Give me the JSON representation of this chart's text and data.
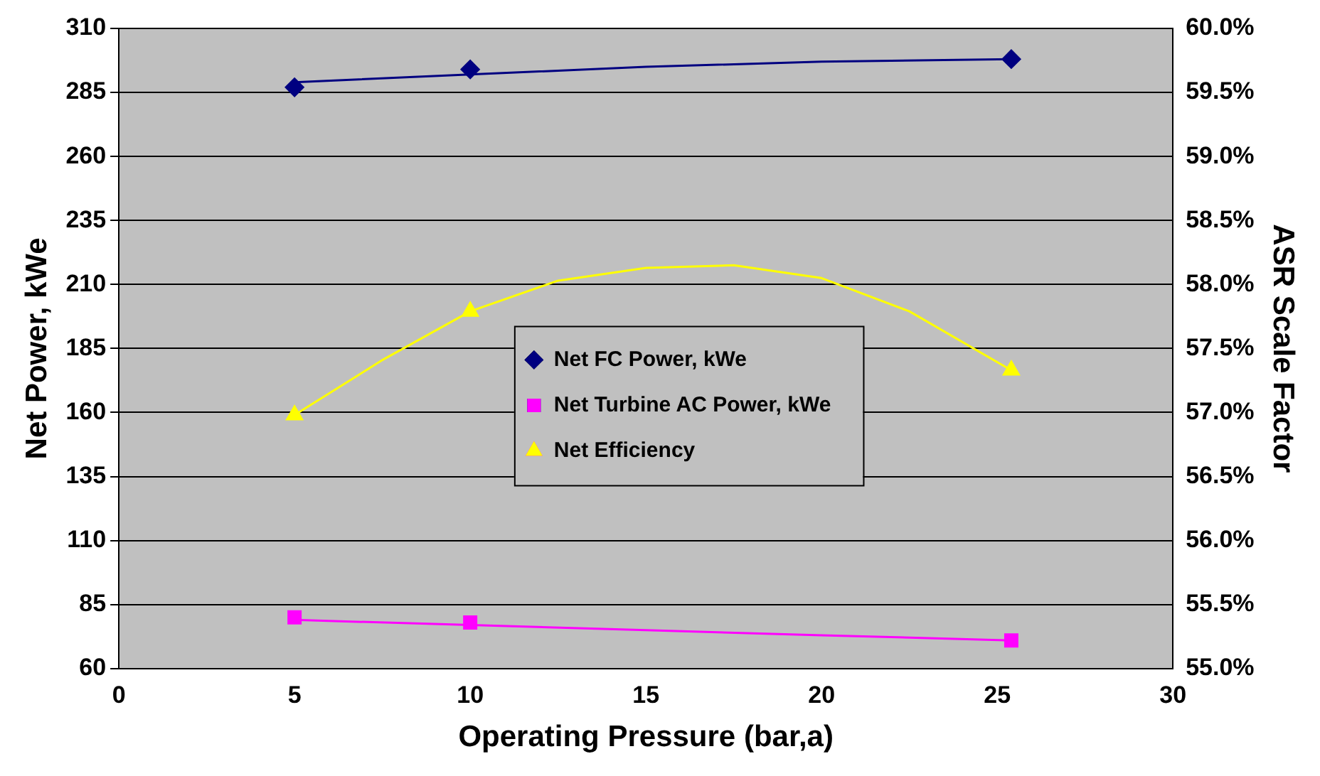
{
  "chart_data": {
    "type": "line",
    "xlabel": "Operating Pressure (bar,a)",
    "ylabel": "Net Power, kWe",
    "y2label": "ASR Scale Factor",
    "xlim": [
      0,
      30
    ],
    "xticks": [
      0,
      5,
      10,
      15,
      20,
      25,
      30
    ],
    "ylim": [
      60,
      310
    ],
    "yticks": [
      60,
      85,
      110,
      135,
      160,
      185,
      210,
      235,
      260,
      285,
      310
    ],
    "y2lim": [
      55,
      60
    ],
    "y2ticks": [
      {
        "value": 55,
        "label": "55.0%"
      },
      {
        "value": 55.5,
        "label": "55.5%"
      },
      {
        "value": 56,
        "label": "56.0%"
      },
      {
        "value": 56.5,
        "label": "56.5%"
      },
      {
        "value": 57,
        "label": "57.0%"
      },
      {
        "value": 57.5,
        "label": "57.5%"
      },
      {
        "value": 58,
        "label": "58.0%"
      },
      {
        "value": 58.5,
        "label": "58.5%"
      },
      {
        "value": 59,
        "label": "59.0%"
      },
      {
        "value": 59.5,
        "label": "59.5%"
      },
      {
        "value": 60,
        "label": "60.0%"
      }
    ],
    "grid": "y",
    "legend": "center",
    "series": [
      {
        "name": "Net FC Power, kWe",
        "type": "scatter",
        "marker": "diamond",
        "color": "#000080",
        "x": [
          5,
          10,
          25.4
        ],
        "values": [
          287,
          294,
          298
        ]
      },
      {
        "name": "Net Turbine AC Power, kWe",
        "type": "scatter",
        "marker": "square",
        "color": "#ff00ff",
        "x": [
          5,
          10,
          25.4
        ],
        "values": [
          80,
          78,
          71
        ]
      },
      {
        "name": "Net Efficiency",
        "type": "scatter",
        "marker": "triangle",
        "color": "#ffff00",
        "axis": "y2",
        "x": [
          5,
          10,
          25.4
        ],
        "values": [
          56.98,
          57.79,
          57.33
        ]
      },
      {
        "type": "line",
        "marker": "none",
        "color": "#000080",
        "x": [
          5,
          10,
          15,
          20,
          25.4
        ],
        "values": [
          289,
          292,
          295,
          297,
          298
        ]
      },
      {
        "type": "line",
        "marker": "none",
        "color": "#ff00ff",
        "x": [
          5,
          10,
          15,
          20,
          25.4
        ],
        "values": [
          79,
          77,
          75,
          73,
          71
        ]
      },
      {
        "type": "line",
        "marker": "none",
        "color": "#ffff00",
        "axis": "y2",
        "x": [
          5,
          7.5,
          10,
          12.5,
          15,
          17.5,
          20,
          22.5,
          25.4
        ],
        "values": [
          56.98,
          57.41,
          57.79,
          58.03,
          58.13,
          58.15,
          58.05,
          57.79,
          57.33
        ]
      }
    ]
  }
}
